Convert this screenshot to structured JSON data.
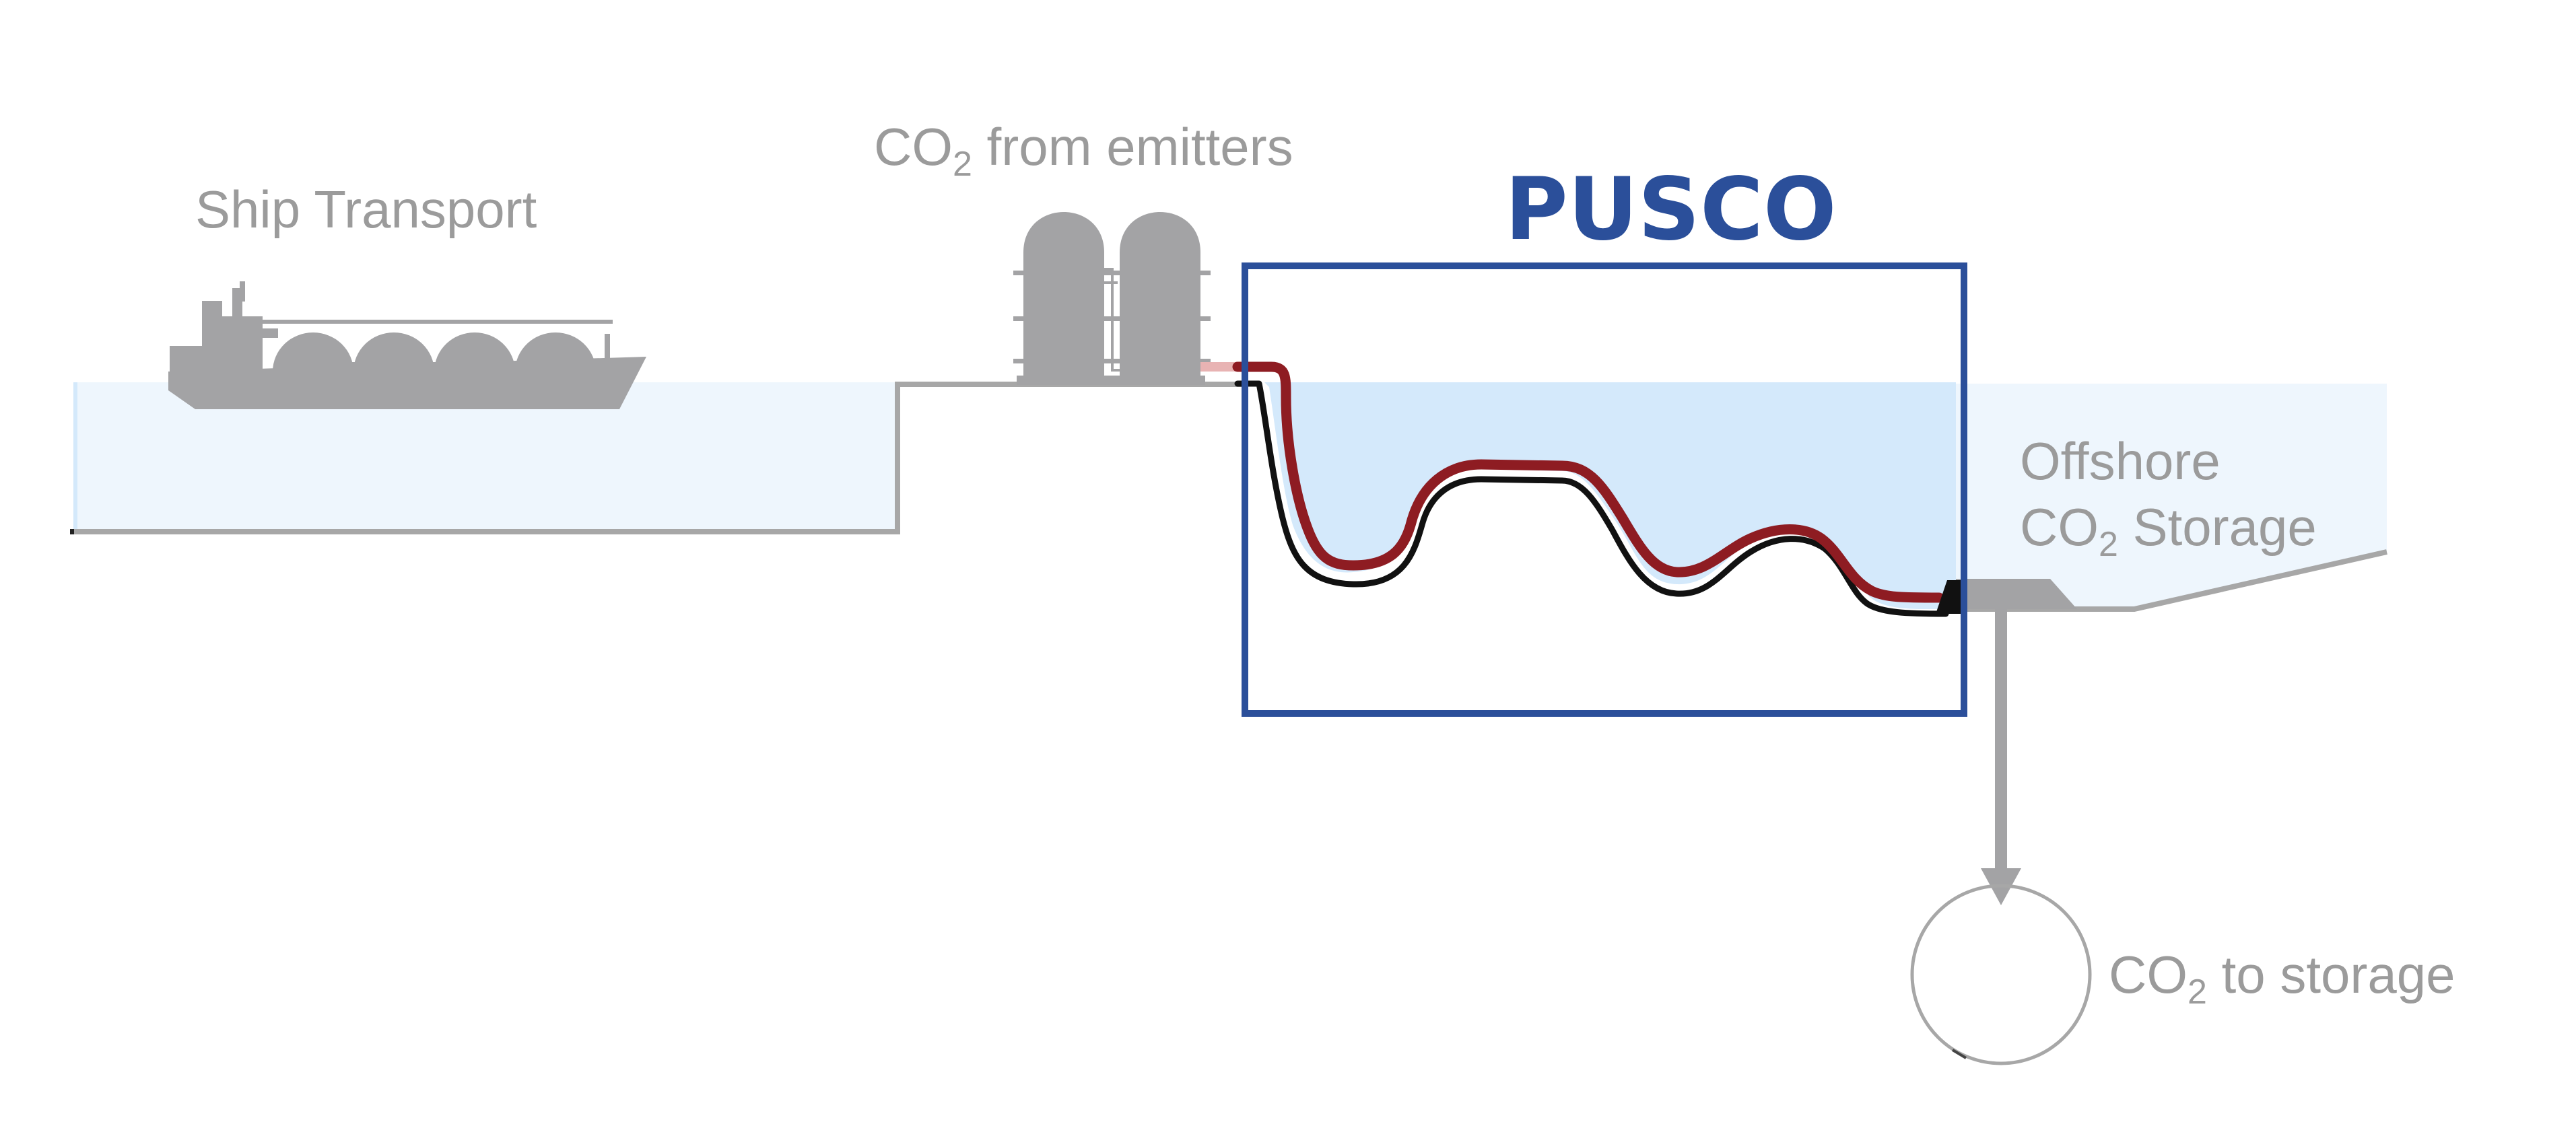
{
  "diagram": {
    "labels": {
      "ship_transport": "Ship Transport",
      "co2_from_emitters": {
        "prefix": "CO",
        "sub": "2",
        "suffix": " from emitters"
      },
      "pusco": "PUSCO",
      "offshore_line1": "Offshore",
      "offshore_co2": {
        "prefix": "CO",
        "sub": "2",
        "suffix": " Storage"
      },
      "co2_to_storage": {
        "prefix": "CO",
        "sub": "2",
        "suffix": " to storage"
      }
    },
    "colors": {
      "label_gray": "#9b9b9b",
      "silhouette_gray": "#a3a3a5",
      "outline_gray": "#a7a7a7",
      "water_light": "#eef6fd",
      "water_pusco": "#d4e9fb",
      "pusco_blue": "#2b4f9a",
      "pipe_red": "#8e1c22",
      "pipe_black": "#111111"
    },
    "icons": [
      "ship-icon",
      "storage-tanks-icon",
      "pipeline-icon",
      "platform-icon",
      "arrow-down-icon",
      "reservoir-circle-icon"
    ]
  }
}
